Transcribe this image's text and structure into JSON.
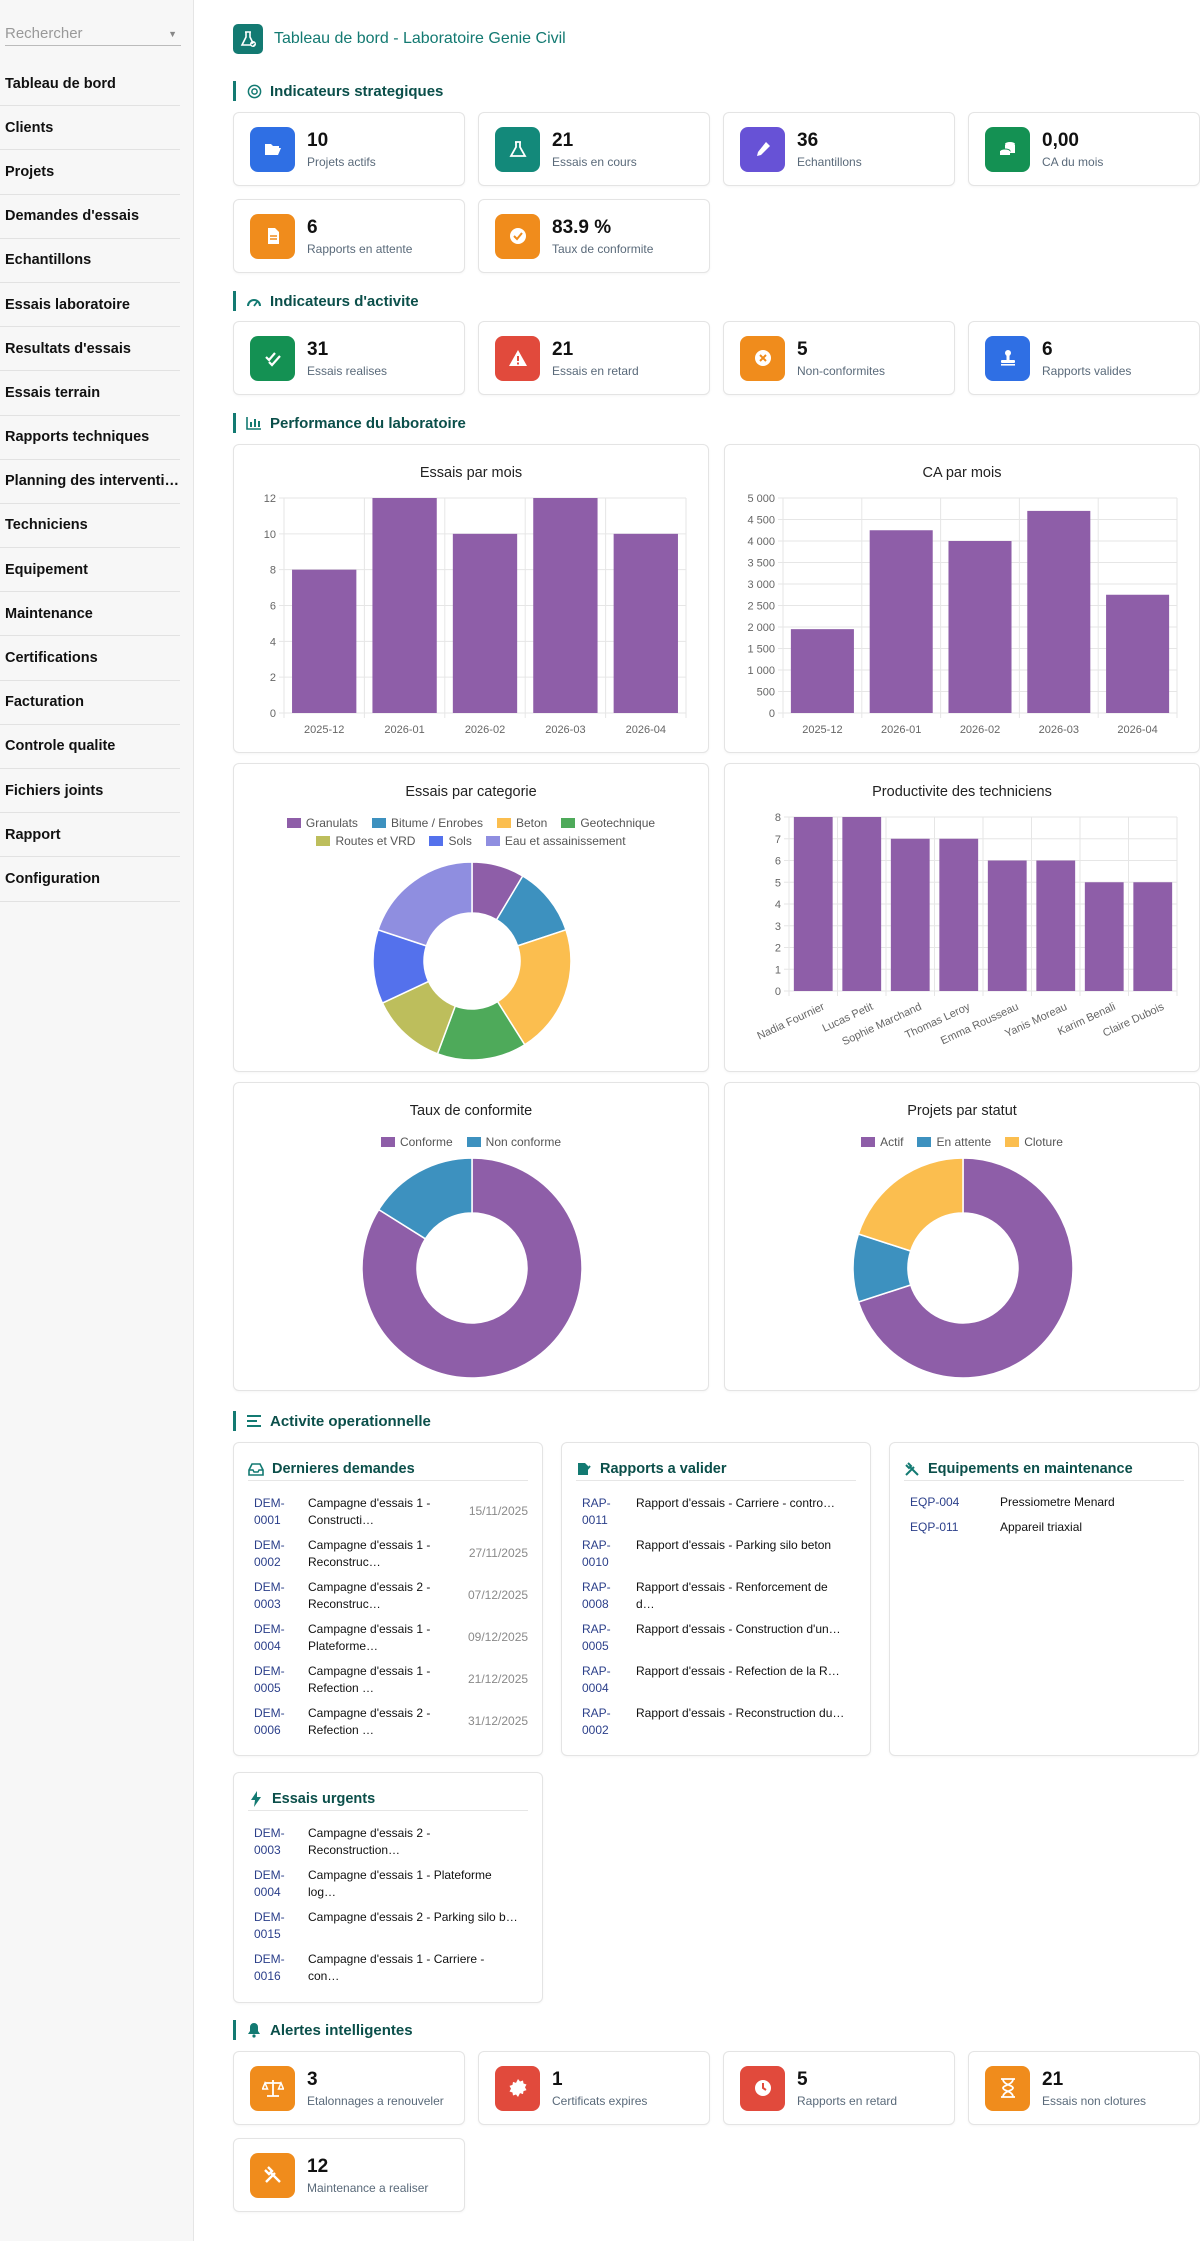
{
  "sidebar": {
    "search_placeholder": "Rechercher",
    "items": [
      {
        "label": "Tableau de bord"
      },
      {
        "label": "Clients"
      },
      {
        "label": "Projets"
      },
      {
        "label": "Demandes d'essais"
      },
      {
        "label": "Echantillons"
      },
      {
        "label": "Essais laboratoire"
      },
      {
        "label": "Resultats d'essais"
      },
      {
        "label": "Essais terrain"
      },
      {
        "label": "Rapports techniques"
      },
      {
        "label": "Planning des interventi…"
      },
      {
        "label": "Techniciens"
      },
      {
        "label": "Equipement"
      },
      {
        "label": "Maintenance"
      },
      {
        "label": "Certifications"
      },
      {
        "label": "Facturation"
      },
      {
        "label": "Controle qualite"
      },
      {
        "label": "Fichiers joints"
      },
      {
        "label": "Rapport"
      },
      {
        "label": "Configuration"
      }
    ]
  },
  "header": {
    "title": "Tableau de bord - Laboratoire Genie Civil"
  },
  "sections": {
    "strategic": "Indicateurs strategiques",
    "activity": "Indicateurs d'activite",
    "performance": "Performance du laboratoire",
    "operational": "Activite operationnelle",
    "alerts": "Alertes intelligentes"
  },
  "kpis_strategic": [
    {
      "value": "10",
      "label": "Projets actifs",
      "icon": "folder-open-icon",
      "color": "#2f6fe4"
    },
    {
      "value": "21",
      "label": "Essais en cours",
      "icon": "flask-icon",
      "color": "#13897a"
    },
    {
      "value": "36",
      "label": "Echantillons",
      "icon": "vial-icon",
      "color": "#6752d6"
    },
    {
      "value": "0,00",
      "label": "CA du mois",
      "icon": "coins-icon",
      "color": "#149153"
    },
    {
      "value": "6",
      "label": "Rapports en attente",
      "icon": "document-icon",
      "color": "#f08c1c"
    },
    {
      "value": "83.9 %",
      "label": "Taux de conformite",
      "icon": "check-circle-icon",
      "color": "#f08c1c"
    }
  ],
  "kpis_activity": [
    {
      "value": "31",
      "label": "Essais realises",
      "icon": "double-check-icon",
      "color": "#149153"
    },
    {
      "value": "21",
      "label": "Essais en retard",
      "icon": "warning-icon",
      "color": "#e14a3c"
    },
    {
      "value": "5",
      "label": "Non-conformites",
      "icon": "x-circle-icon",
      "color": "#f08c1c"
    },
    {
      "value": "6",
      "label": "Rapports valides",
      "icon": "stamp-icon",
      "color": "#2f6fe4"
    }
  ],
  "colors": {
    "accent": "#137a72",
    "purple": "#8e5ea8",
    "cat": [
      "#8e5ea8",
      "#3d91bf",
      "#fbbe4f",
      "#4eaa5a",
      "#bdbe5c",
      "#5471ec",
      "#8f8ee0"
    ]
  },
  "chart_data": [
    {
      "type": "bar",
      "title": "Essais par mois",
      "categories": [
        "2025-12",
        "2026-01",
        "2026-02",
        "2026-03",
        "2026-04"
      ],
      "values": [
        8,
        12,
        10,
        12,
        10
      ],
      "ylim": [
        0,
        12
      ],
      "yticks": [
        "0",
        "2",
        "4",
        "6",
        "8",
        "10",
        "12"
      ],
      "grid": true
    },
    {
      "type": "bar",
      "title": "CA par mois",
      "categories": [
        "2025-12",
        "2026-01",
        "2026-02",
        "2026-03",
        "2026-04"
      ],
      "values": [
        1950,
        4250,
        4000,
        4700,
        2750
      ],
      "ylim": [
        0,
        5000
      ],
      "yticks": [
        "0",
        "500",
        "1 000",
        "1 500",
        "2 000",
        "2 500",
        "3 000",
        "3 500",
        "4 000",
        "4 500",
        "5 000"
      ],
      "grid": true
    },
    {
      "type": "pie",
      "title": "Essais par categorie",
      "labels": [
        "Granulats",
        "Bitume / Enrobes",
        "Beton",
        "Geotechnique",
        "Routes et VRD",
        "Sols",
        "Eau et assainissement"
      ],
      "values": [
        3.4,
        4.5,
        8.4,
        5.8,
        4.9,
        4.8,
        7.9
      ],
      "legend": "top"
    },
    {
      "type": "bar",
      "title": "Productivite des techniciens",
      "categories": [
        "Nadia Fournier",
        "Lucas Petit",
        "Sophie Marchand",
        "Thomas Leroy",
        "Emma Rousseau",
        "Yanis Moreau",
        "Karim Benali",
        "Claire Dubois"
      ],
      "values": [
        8,
        8,
        7,
        7,
        6,
        6,
        5,
        5
      ],
      "ylim": [
        0,
        8
      ],
      "yticks": [
        "0",
        "1",
        "2",
        "3",
        "4",
        "5",
        "6",
        "7",
        "8"
      ],
      "grid": true
    },
    {
      "type": "pie",
      "title": "Taux de conformite",
      "labels": [
        "Conforme",
        "Non conforme"
      ],
      "values": [
        83.9,
        16.1
      ],
      "legend": "top"
    },
    {
      "type": "pie",
      "title": "Projets par statut",
      "labels": [
        "Actif",
        "En attente",
        "Cloture"
      ],
      "values": [
        70,
        10,
        20
      ],
      "legend": "top"
    }
  ],
  "operational": {
    "demandes": {
      "title": "Dernieres demandes",
      "rows": [
        {
          "code": "DEM-\n0001",
          "desc": "Campagne d'essais 1 - Constructi…",
          "date": "15/11/2025"
        },
        {
          "code": "DEM-\n0002",
          "desc": "Campagne d'essais 1 - Reconstruc…",
          "date": "27/11/2025"
        },
        {
          "code": "DEM-\n0003",
          "desc": "Campagne d'essais 2 - Reconstruc…",
          "date": "07/12/2025"
        },
        {
          "code": "DEM-\n0004",
          "desc": "Campagne d'essais 1 - Plateforme…",
          "date": "09/12/2025"
        },
        {
          "code": "DEM-\n0005",
          "desc": "Campagne d'essais 1 - Refection …",
          "date": "21/12/2025"
        },
        {
          "code": "DEM-\n0006",
          "desc": "Campagne d'essais 2 - Refection …",
          "date": "31/12/2025"
        }
      ]
    },
    "rapports": {
      "title": "Rapports a valider",
      "rows": [
        {
          "code": "RAP-\n0011",
          "desc": "Rapport d'essais - Carriere - contro…"
        },
        {
          "code": "RAP-\n0010",
          "desc": "Rapport d'essais - Parking silo beton"
        },
        {
          "code": "RAP-\n0008",
          "desc": "Rapport d'essais - Renforcement de d…"
        },
        {
          "code": "RAP-\n0005",
          "desc": "Rapport d'essais - Construction d'un…"
        },
        {
          "code": "RAP-\n0004",
          "desc": "Rapport d'essais - Refection de la R…"
        },
        {
          "code": "RAP-\n0002",
          "desc": "Rapport d'essais - Reconstruction du…"
        }
      ]
    },
    "equipements": {
      "title": "Equipements en maintenance",
      "rows": [
        {
          "code": "EQP-004",
          "desc": "Pressiometre Menard"
        },
        {
          "code": "EQP-011",
          "desc": "Appareil triaxial"
        }
      ]
    },
    "urgents": {
      "title": "Essais urgents",
      "rows": [
        {
          "code": "DEM-\n0003",
          "desc": "Campagne d'essais 2 - Reconstruction…"
        },
        {
          "code": "DEM-\n0004",
          "desc": "Campagne d'essais 1 - Plateforme log…"
        },
        {
          "code": "DEM-\n0015",
          "desc": "Campagne d'essais 2 - Parking silo b…"
        },
        {
          "code": "DEM-\n0016",
          "desc": "Campagne d'essais 1 - Carriere - con…"
        }
      ]
    }
  },
  "alerts": [
    {
      "value": "3",
      "label": "Etalonnages a renouveler",
      "icon": "scale-icon",
      "color": "#f08c1c"
    },
    {
      "value": "1",
      "label": "Certificats expires",
      "icon": "certificate-icon",
      "color": "#e14a3c"
    },
    {
      "value": "5",
      "label": "Rapports en retard",
      "icon": "clock-icon",
      "color": "#e14a3c"
    },
    {
      "value": "21",
      "label": "Essais non clotures",
      "icon": "hourglass-icon",
      "color": "#f08c1c"
    },
    {
      "value": "12",
      "label": "Maintenance a realiser",
      "icon": "tools-icon",
      "color": "#f08c1c"
    }
  ]
}
